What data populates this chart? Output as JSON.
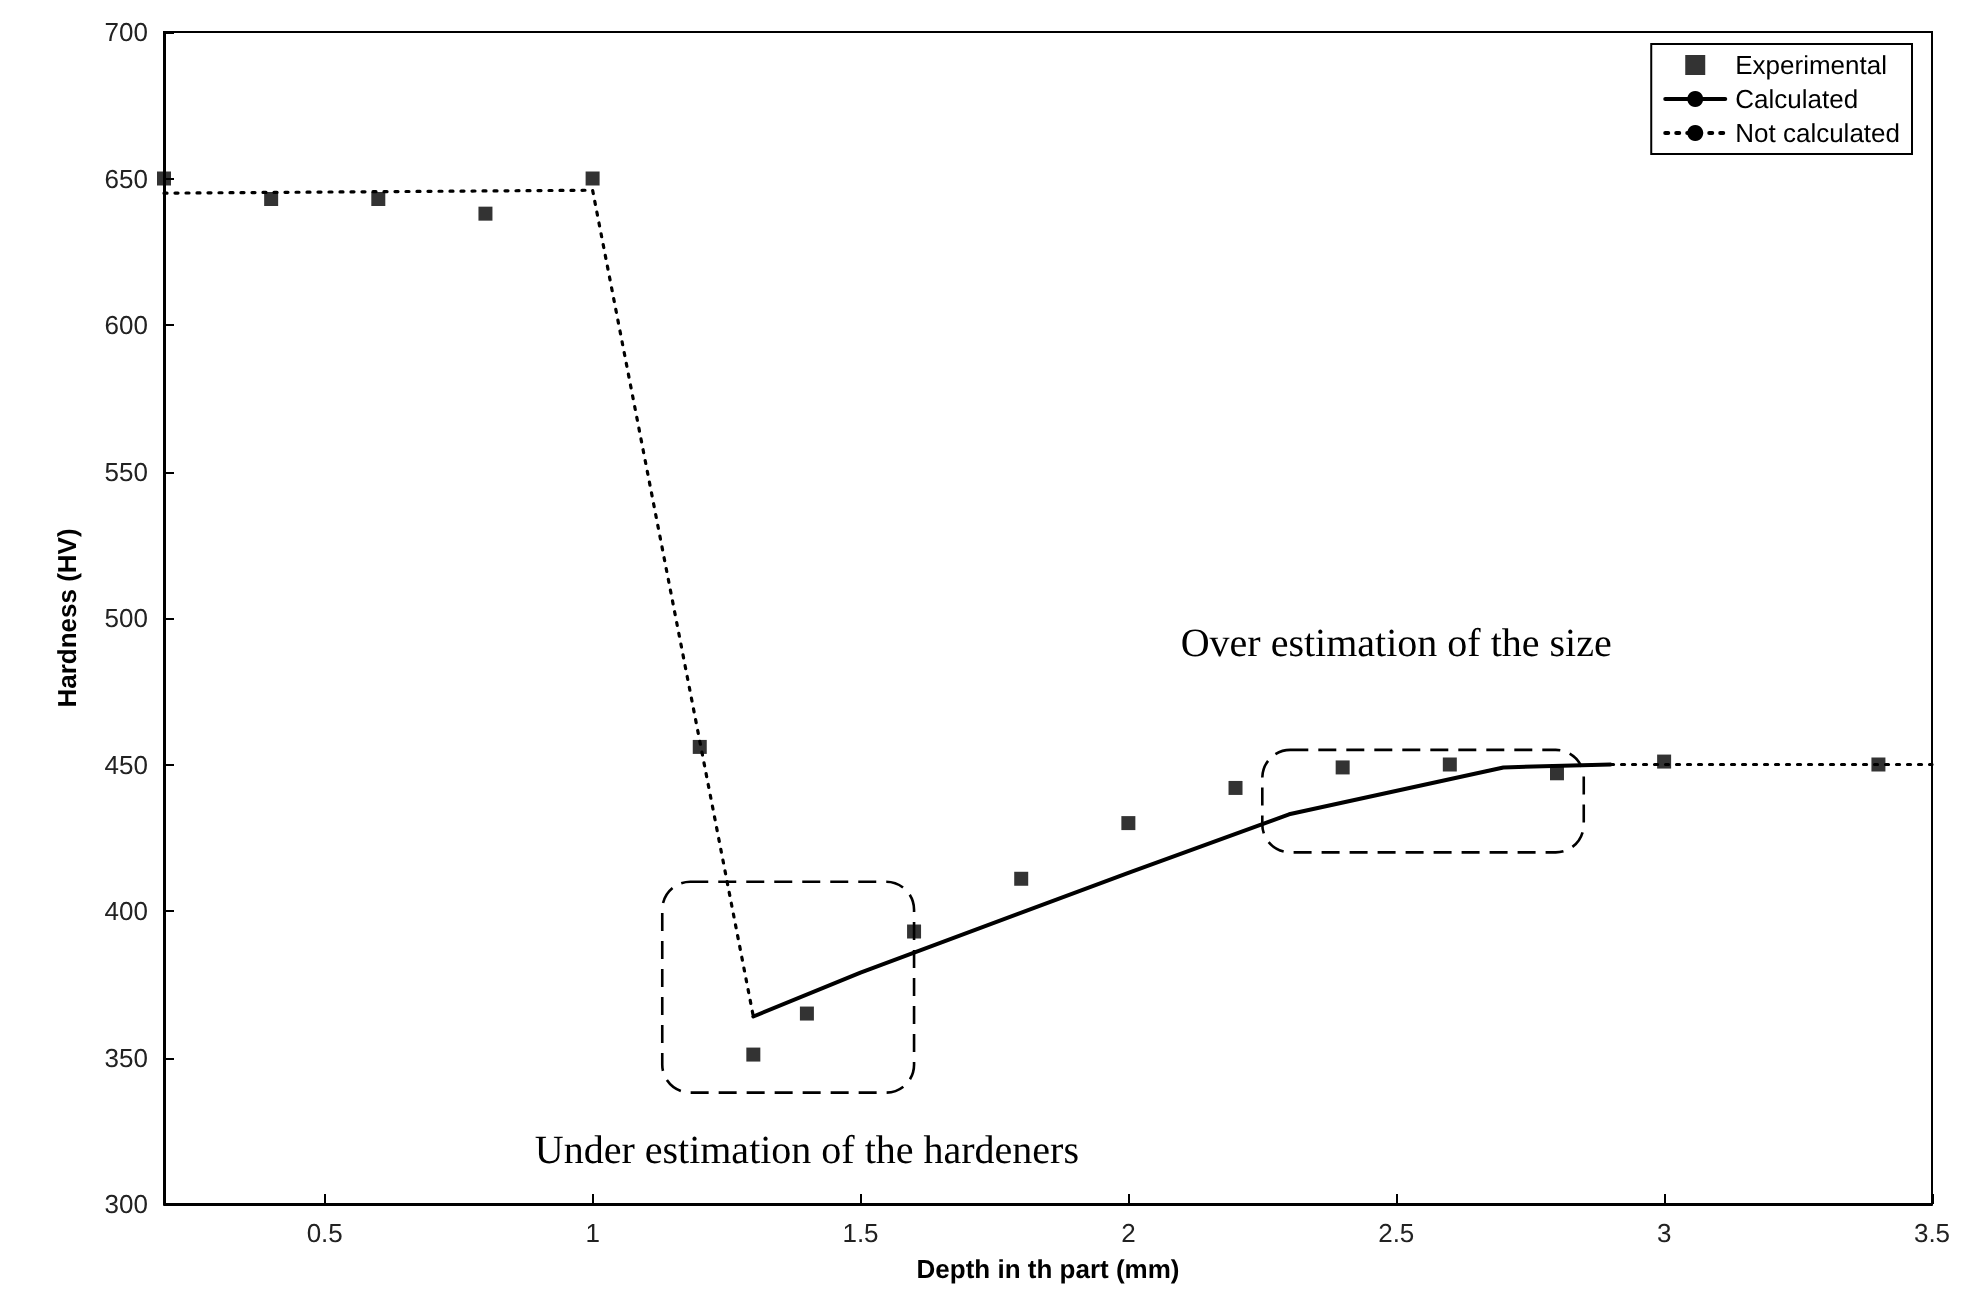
{
  "chart_data": {
    "type": "line",
    "xlabel": "Depth in th part (mm)",
    "ylabel": "Hardness (HV)",
    "xlim": [
      0.2,
      3.5
    ],
    "xticks": [
      0.5,
      1,
      1.5,
      2,
      2.5,
      3,
      3.5
    ],
    "ylim": [
      300,
      700
    ],
    "yticks": [
      300,
      350,
      400,
      450,
      500,
      550,
      600,
      650,
      700
    ],
    "grid": false,
    "legend": "top right",
    "series": [
      {
        "name": "Experimental",
        "type": "scatter",
        "marker": "square",
        "color": "#000000",
        "x": [
          0.2,
          0.4,
          0.6,
          0.8,
          1.0,
          1.2,
          1.3,
          1.4,
          1.6,
          1.8,
          2.0,
          2.2,
          2.4,
          2.6,
          2.8,
          3.0,
          3.4
        ],
        "values": [
          650,
          643,
          643,
          638,
          650,
          456,
          351,
          365,
          393,
          411,
          430,
          442,
          449,
          450,
          447,
          451,
          450
        ]
      },
      {
        "name": "Calculated",
        "line_style": "solid",
        "marker": "none",
        "color": "#000000",
        "x": [
          1.3,
          1.5,
          2.0,
          2.3,
          2.7,
          2.9
        ],
        "values": [
          364,
          379,
          413,
          433,
          449,
          450
        ]
      },
      {
        "name": "Not calculated",
        "line_style": "dotted",
        "marker": "none",
        "color": "#000000",
        "x": [
          0.2,
          1.0,
          1.3,
          2.1,
          2.9,
          3.5
        ],
        "values": [
          645,
          646,
          364,
          null,
          450,
          450
        ]
      }
    ],
    "annotations": [
      "Over estimation of the size",
      "Under estimation of the hardeners"
    ]
  }
}
